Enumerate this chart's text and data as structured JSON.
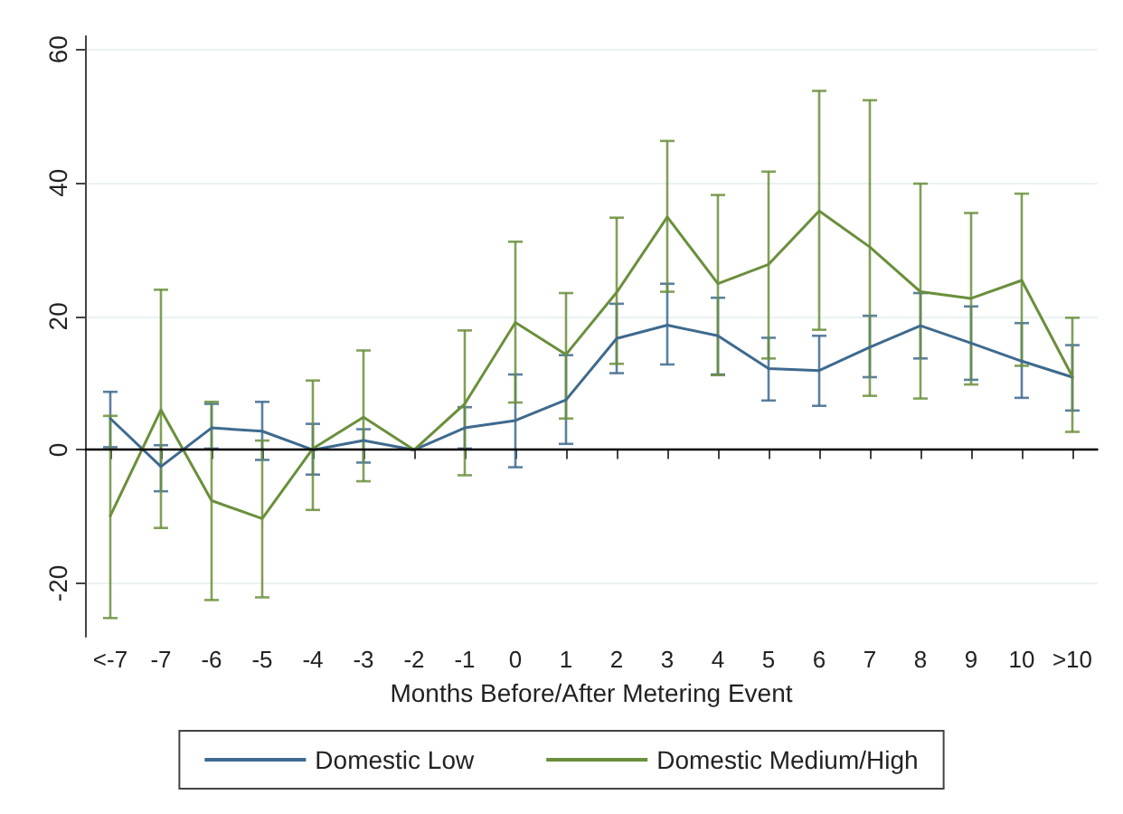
{
  "chart_data": {
    "type": "line",
    "xlabel": "Months Before/After Metering Event",
    "categories": [
      "<-7",
      "-7",
      "-6",
      "-5",
      "-4",
      "-3",
      "-2",
      "-1",
      "0",
      "1",
      "2",
      "3",
      "4",
      "5",
      "6",
      "7",
      "8",
      "9",
      "10",
      ">10"
    ],
    "series": [
      {
        "name": "Domestic Low",
        "color": "#3e6a8f",
        "values": [
          4.7,
          -2.5,
          3.3,
          2.8,
          0,
          1.4,
          0,
          3.3,
          4.4,
          7.5,
          16.7,
          18.7,
          17.1,
          12.2,
          11.9,
          15.4,
          18.6,
          16.0,
          13.3,
          10.9
        ],
        "errors": [
          [
            0.4,
            8.7
          ],
          [
            -6.2,
            0.7
          ],
          [
            0.2,
            6.9
          ],
          [
            -1.5,
            7.2
          ],
          [
            -3.7,
            3.9
          ],
          [
            -1.9,
            3.1
          ],
          null,
          [
            0.2,
            6.4
          ],
          [
            -2.6,
            11.3
          ],
          [
            0.9,
            14.2
          ],
          [
            11.5,
            21.9
          ],
          [
            12.8,
            24.9
          ],
          [
            11.3,
            22.8
          ],
          [
            7.4,
            16.8
          ],
          [
            6.6,
            17.1
          ],
          [
            10.9,
            20.1
          ],
          [
            13.7,
            23.5
          ],
          [
            10.5,
            21.5
          ],
          [
            7.8,
            19.0
          ],
          [
            5.9,
            15.7
          ]
        ]
      },
      {
        "name": "Domestic Medium/High",
        "color": "#6a8f3b",
        "values": [
          -9.9,
          6.0,
          -7.6,
          -10.3,
          0.2,
          4.9,
          0,
          6.9,
          19.1,
          14.3,
          23.6,
          34.9,
          24.9,
          27.8,
          35.8,
          30.4,
          23.7,
          22.7,
          25.4,
          11.0
        ],
        "errors": [
          [
            -25.2,
            5.1
          ],
          [
            -11.7,
            24.0
          ],
          [
            -22.5,
            7.2
          ],
          [
            -22.1,
            1.4
          ],
          [
            -9.0,
            10.4
          ],
          [
            -4.7,
            14.9
          ],
          null,
          [
            -3.8,
            17.9
          ],
          [
            7.1,
            31.2
          ],
          [
            4.7,
            23.5
          ],
          [
            12.9,
            34.8
          ],
          [
            23.7,
            46.3
          ],
          [
            11.2,
            38.2
          ],
          [
            13.7,
            41.7
          ],
          [
            18.0,
            53.8
          ],
          [
            8.1,
            52.4
          ],
          [
            7.7,
            39.9
          ],
          [
            9.8,
            35.5
          ],
          [
            12.6,
            38.4
          ],
          [
            2.7,
            19.8
          ]
        ]
      }
    ],
    "ylim": [
      -28,
      62
    ],
    "yticks": [
      -20,
      0,
      20,
      40,
      60
    ],
    "grid": "y",
    "legend": "bottom",
    "marker": "none",
    "line_style": "solid",
    "ref_lines": [
      {
        "axis": "y",
        "value": 0,
        "color": "#000000"
      }
    ]
  }
}
